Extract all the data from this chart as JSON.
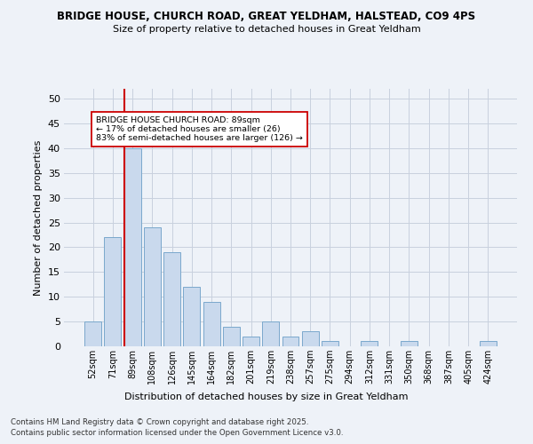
{
  "title_line1": "BRIDGE HOUSE, CHURCH ROAD, GREAT YELDHAM, HALSTEAD, CO9 4PS",
  "title_line2": "Size of property relative to detached houses in Great Yeldham",
  "xlabel": "Distribution of detached houses by size in Great Yeldham",
  "ylabel": "Number of detached properties",
  "categories": [
    "52sqm",
    "71sqm",
    "89sqm",
    "108sqm",
    "126sqm",
    "145sqm",
    "164sqm",
    "182sqm",
    "201sqm",
    "219sqm",
    "238sqm",
    "257sqm",
    "275sqm",
    "294sqm",
    "312sqm",
    "331sqm",
    "350sqm",
    "368sqm",
    "387sqm",
    "405sqm",
    "424sqm"
  ],
  "values": [
    5,
    22,
    40,
    24,
    19,
    12,
    9,
    4,
    2,
    5,
    2,
    3,
    1,
    0,
    1,
    0,
    1,
    0,
    0,
    0,
    1
  ],
  "bar_color": "#c9d9ed",
  "bar_edge_color": "#7aa8cc",
  "red_line_index": 2,
  "red_line_color": "#cc0000",
  "ylim": [
    0,
    52
  ],
  "yticks": [
    0,
    5,
    10,
    15,
    20,
    25,
    30,
    35,
    40,
    45,
    50
  ],
  "annotation_title": "BRIDGE HOUSE CHURCH ROAD: 89sqm",
  "annotation_line1": "← 17% of detached houses are smaller (26)",
  "annotation_line2": "83% of semi-detached houses are larger (126) →",
  "annotation_box_color": "#ffffff",
  "annotation_box_edge": "#cc0000",
  "footer_line1": "Contains HM Land Registry data © Crown copyright and database right 2025.",
  "footer_line2": "Contains public sector information licensed under the Open Government Licence v3.0.",
  "bg_color": "#eef2f8",
  "grid_color": "#c8d0de"
}
